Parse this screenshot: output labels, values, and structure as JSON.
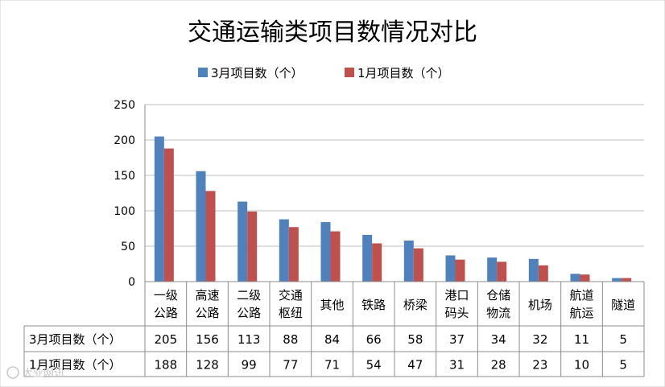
{
  "chart_data": {
    "type": "bar",
    "title": "交通运输类项目数情况对比",
    "categories": [
      [
        "一级",
        "公路"
      ],
      [
        "高速",
        "公路"
      ],
      [
        "二级",
        "公路"
      ],
      [
        "交通",
        "枢纽"
      ],
      [
        "其他"
      ],
      [
        "铁路"
      ],
      [
        "桥梁"
      ],
      [
        "港口",
        "码头"
      ],
      [
        "仓储",
        "物流"
      ],
      [
        "机场"
      ],
      [
        "航道",
        "航运"
      ],
      [
        "隧道"
      ]
    ],
    "series": [
      {
        "name": "3月项目数（个）",
        "color": "#4F81BD",
        "values": [
          205,
          156,
          113,
          88,
          84,
          66,
          58,
          37,
          34,
          32,
          11,
          5
        ]
      },
      {
        "name": "1月项目数（个）",
        "color": "#C0504D",
        "values": [
          188,
          128,
          99,
          77,
          71,
          54,
          47,
          31,
          28,
          23,
          10,
          5
        ]
      }
    ],
    "yticks": [
      "0",
      "50",
      "100",
      "150",
      "200",
      "250"
    ],
    "ylim": [
      0,
      250
    ],
    "grid": true,
    "legend": "top-center",
    "data_table": true
  },
  "watermark": "大业网讯"
}
